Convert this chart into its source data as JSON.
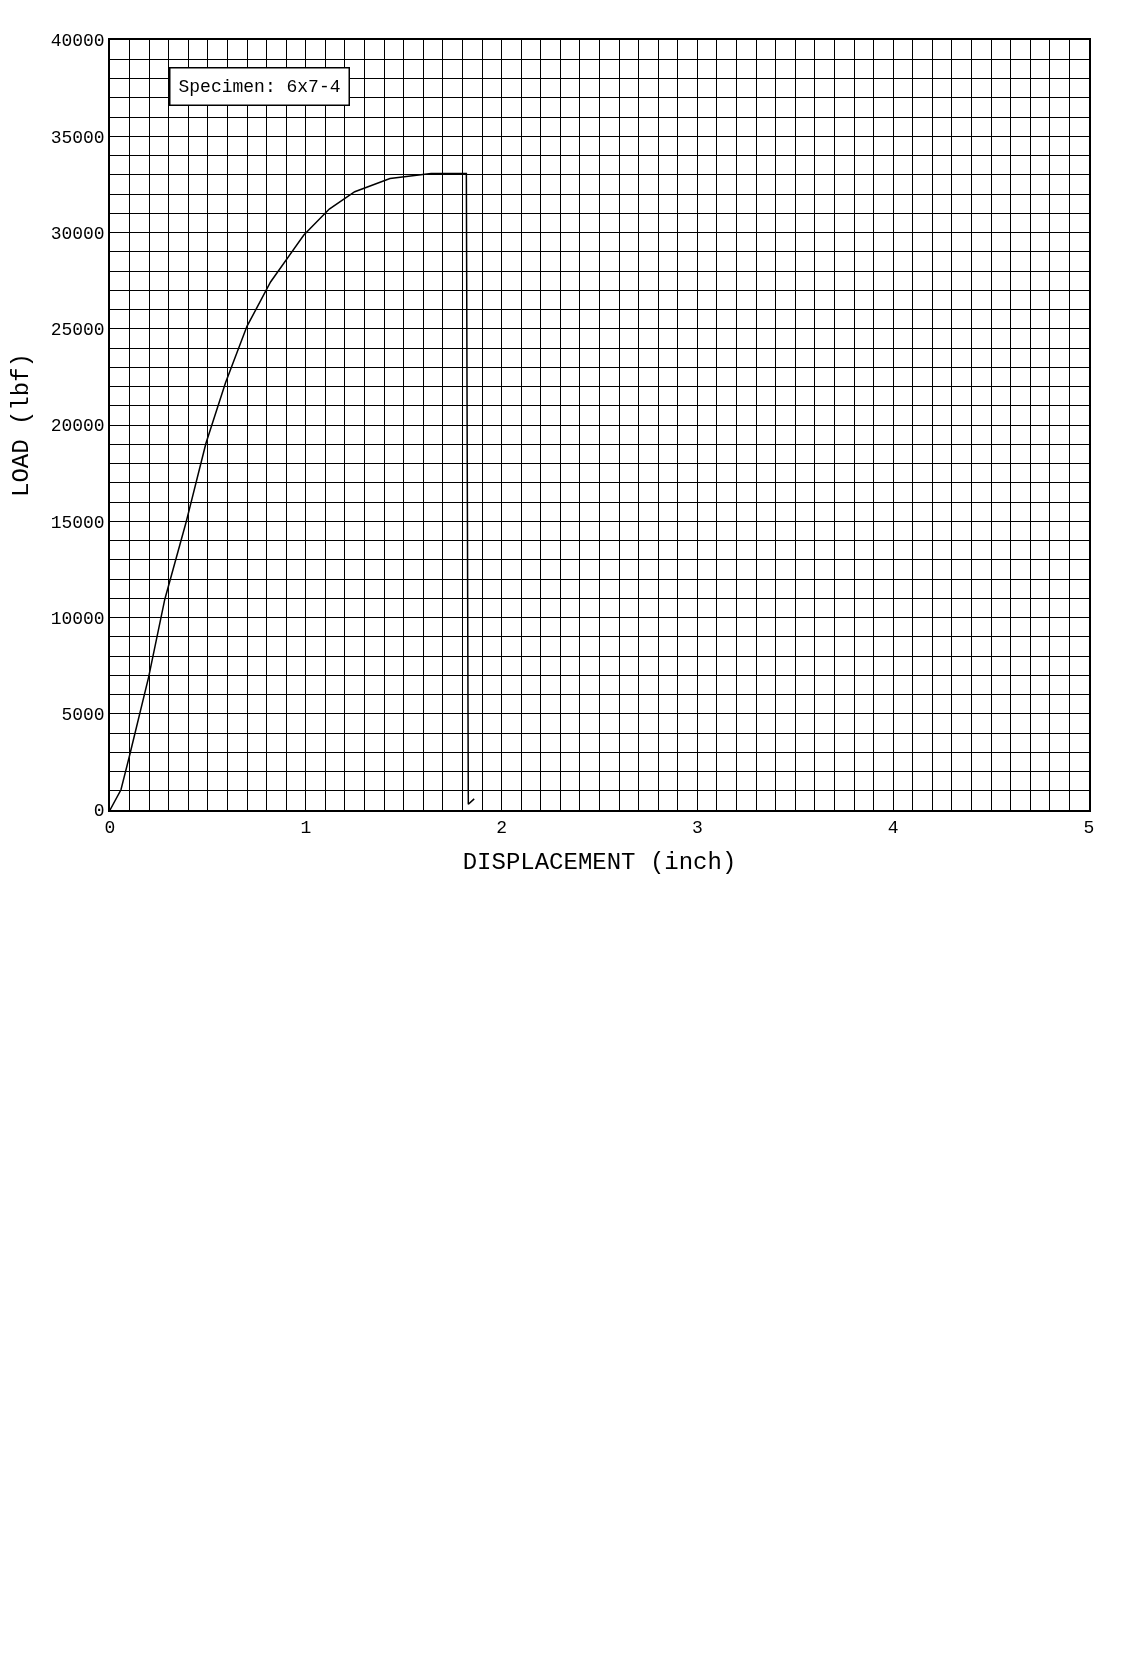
{
  "chart_data": {
    "type": "line",
    "xlabel": "DISPLACEMENT (inch)",
    "ylabel": "LOAD (lbf)",
    "annotations": [
      "Specimen: 6x7-4"
    ],
    "x": [
      0,
      0.056,
      0.1,
      0.197,
      0.28,
      0.39,
      0.49,
      0.59,
      0.7,
      0.82,
      0.99,
      1.12,
      1.25,
      1.43,
      1.64,
      1.82,
      1.83,
      1.86
    ],
    "series": [
      {
        "color": "#000000",
        "values": [
          0,
          1050,
          2830,
          6890,
          10950,
          15000,
          19050,
          22200,
          25140,
          27430,
          29870,
          31220,
          32120,
          32800,
          33070,
          33070,
          300,
          580
        ]
      }
    ],
    "xlim": [
      0,
      5
    ],
    "ylim": [
      0,
      40000
    ],
    "xticks": [
      0,
      {
        "value": 0.1,
        "label": null
      },
      {
        "value": 0.2,
        "label": null
      },
      {
        "value": 0.3,
        "label": null
      },
      {
        "value": 0.4,
        "label": null
      },
      {
        "value": 0.5,
        "label": null
      },
      {
        "value": 0.6,
        "label": null
      },
      {
        "value": 0.7,
        "label": null
      },
      {
        "value": 0.8,
        "label": null
      },
      {
        "value": 0.9,
        "label": null
      },
      1,
      {
        "value": 1.1,
        "label": null
      },
      {
        "value": 1.2,
        "label": null
      },
      {
        "value": 1.3,
        "label": null
      },
      {
        "value": 1.4,
        "label": null
      },
      {
        "value": 1.5,
        "label": null
      },
      {
        "value": 1.6,
        "label": null
      },
      {
        "value": 1.7,
        "label": null
      },
      {
        "value": 1.8,
        "label": null
      },
      {
        "value": 1.9,
        "label": null
      },
      2,
      {
        "value": 2.1,
        "label": null
      },
      {
        "value": 2.2,
        "label": null
      },
      {
        "value": 2.3,
        "label": null
      },
      {
        "value": 2.4,
        "label": null
      },
      {
        "value": 2.5,
        "label": null
      },
      {
        "value": 2.6,
        "label": null
      },
      {
        "value": 2.7,
        "label": null
      },
      {
        "value": 2.8,
        "label": null
      },
      {
        "value": 2.9,
        "label": null
      },
      3,
      {
        "value": 3.1,
        "label": null
      },
      {
        "value": 3.2,
        "label": null
      },
      {
        "value": 3.3,
        "label": null
      },
      {
        "value": 3.4,
        "label": null
      },
      {
        "value": 3.5,
        "label": null
      },
      {
        "value": 3.6,
        "label": null
      },
      {
        "value": 3.7,
        "label": null
      },
      {
        "value": 3.8,
        "label": null
      },
      {
        "value": 3.9,
        "label": null
      },
      4,
      {
        "value": 4.1,
        "label": null
      },
      {
        "value": 4.2,
        "label": null
      },
      {
        "value": 4.3,
        "label": null
      },
      {
        "value": 4.4,
        "label": null
      },
      {
        "value": 4.5,
        "label": null
      },
      {
        "value": 4.6,
        "label": null
      },
      {
        "value": 4.7,
        "label": null
      },
      {
        "value": 4.8,
        "label": null
      },
      {
        "value": 4.9,
        "label": null
      },
      5
    ],
    "yticks": [
      0,
      {
        "value": 1000,
        "label": null
      },
      {
        "value": 2000,
        "label": null
      },
      {
        "value": 3000,
        "label": null
      },
      {
        "value": 4000,
        "label": null
      },
      5000,
      {
        "value": 6000,
        "label": null
      },
      {
        "value": 7000,
        "label": null
      },
      {
        "value": 8000,
        "label": null
      },
      {
        "value": 9000,
        "label": null
      },
      10000,
      {
        "value": 11000,
        "label": null
      },
      {
        "value": 12000,
        "label": null
      },
      {
        "value": 13000,
        "label": null
      },
      {
        "value": 14000,
        "label": null
      },
      15000,
      {
        "value": 16000,
        "label": null
      },
      {
        "value": 17000,
        "label": null
      },
      {
        "value": 18000,
        "label": null
      },
      {
        "value": 19000,
        "label": null
      },
      20000,
      {
        "value": 21000,
        "label": null
      },
      {
        "value": 22000,
        "label": null
      },
      {
        "value": 23000,
        "label": null
      },
      {
        "value": 24000,
        "label": null
      },
      25000,
      {
        "value": 26000,
        "label": null
      },
      {
        "value": 27000,
        "label": null
      },
      {
        "value": 28000,
        "label": null
      },
      {
        "value": 29000,
        "label": null
      },
      30000,
      {
        "value": 31000,
        "label": null
      },
      {
        "value": 32000,
        "label": null
      },
      {
        "value": 33000,
        "label": null
      },
      {
        "value": 34000,
        "label": null
      },
      35000,
      {
        "value": 36000,
        "label": null
      },
      {
        "value": 37000,
        "label": null
      },
      {
        "value": 38000,
        "label": null
      },
      {
        "value": 39000,
        "label": null
      },
      40000
    ],
    "grid": true,
    "legend": false,
    "line_style": "solid",
    "marker": "none"
  }
}
